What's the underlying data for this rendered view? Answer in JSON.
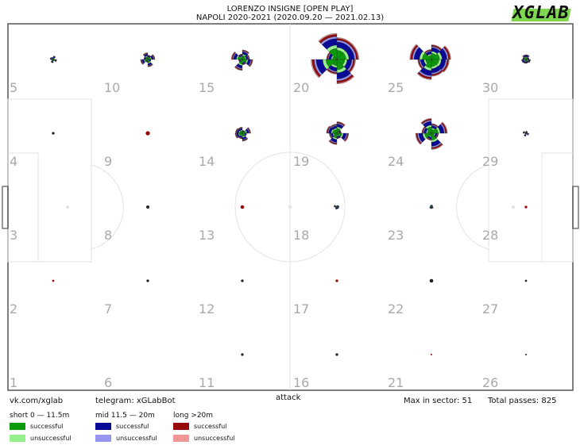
{
  "header": {
    "title_line1": "LORENZO INSIGNE [OPEN PLAY]",
    "title_line2": "NAPOLI 2020-2021 (2020.09.20 — 2021.02.13)",
    "logo_text": "XGLAB"
  },
  "footer": {
    "vk": "vk.com/xglab",
    "telegram": "telegram: xGLabBot",
    "attack": "attack",
    "max_in_sector": "Max in sector: 51",
    "total_passes": "Total passes: 825"
  },
  "legend": {
    "short_title": "short 0 — 11.5m",
    "mid_title": "mid 11.5 — 20m",
    "long_title": "long >20m",
    "successful": "successful",
    "unsuccessful": "unsuccessful",
    "colors": {
      "short_successful": "#0a9a0a",
      "short_unsuccessful": "#96f08c",
      "mid_successful": "#0a0a96",
      "mid_unsuccessful": "#9696f0",
      "long_successful": "#960a0a",
      "long_unsuccessful": "#f09696"
    }
  },
  "chart_data": {
    "type": "radial-sector-map",
    "max_in_sector": 51,
    "total_passes": 825,
    "sector_numbers": [
      "1",
      "2",
      "3",
      "4",
      "5",
      "6",
      "7",
      "8",
      "9",
      "10",
      "11",
      "12",
      "13",
      "14",
      "15",
      "16",
      "17",
      "18",
      "19",
      "20",
      "21",
      "22",
      "23",
      "24",
      "25",
      "26",
      "27",
      "28",
      "29",
      "30"
    ],
    "sectors": [
      {
        "sector": 5,
        "col": 0,
        "row": 0,
        "size": 0.14
      },
      {
        "sector": 4,
        "col": 0,
        "row": 1,
        "size": 0.05
      },
      {
        "sector": 3,
        "col": 0,
        "row": 2,
        "size": 0.0
      },
      {
        "sector": 2,
        "col": 0,
        "row": 3,
        "size": 0.04
      },
      {
        "sector": 1,
        "col": 0,
        "row": 4,
        "size": 0.0
      },
      {
        "sector": 10,
        "col": 1,
        "row": 0,
        "size": 0.28
      },
      {
        "sector": 9,
        "col": 1,
        "row": 1,
        "size": 0.08
      },
      {
        "sector": 8,
        "col": 1,
        "row": 2,
        "size": 0.06
      },
      {
        "sector": 7,
        "col": 1,
        "row": 3,
        "size": 0.05
      },
      {
        "sector": 6,
        "col": 1,
        "row": 4,
        "size": 0.0
      },
      {
        "sector": 15,
        "col": 2,
        "row": 0,
        "size": 0.42
      },
      {
        "sector": 14,
        "col": 2,
        "row": 1,
        "size": 0.32
      },
      {
        "sector": 13,
        "col": 2,
        "row": 2,
        "size": 0.07
      },
      {
        "sector": 12,
        "col": 2,
        "row": 3,
        "size": 0.05
      },
      {
        "sector": 11,
        "col": 2,
        "row": 4,
        "size": 0.05
      },
      {
        "sector": 20,
        "col": 3,
        "row": 0,
        "size": 1.0
      },
      {
        "sector": 19,
        "col": 3,
        "row": 1,
        "size": 0.45
      },
      {
        "sector": 18,
        "col": 3,
        "row": 2,
        "size": 0.12
      },
      {
        "sector": 17,
        "col": 3,
        "row": 3,
        "size": 0.05
      },
      {
        "sector": 16,
        "col": 3,
        "row": 4,
        "size": 0.05
      },
      {
        "sector": 25,
        "col": 4,
        "row": 0,
        "size": 0.85
      },
      {
        "sector": 24,
        "col": 4,
        "row": 1,
        "size": 0.62
      },
      {
        "sector": 23,
        "col": 4,
        "row": 2,
        "size": 0.1
      },
      {
        "sector": 22,
        "col": 4,
        "row": 3,
        "size": 0.07
      },
      {
        "sector": 21,
        "col": 4,
        "row": 4,
        "size": 0.03
      },
      {
        "sector": 30,
        "col": 5,
        "row": 0,
        "size": 0.2
      },
      {
        "sector": 29,
        "col": 5,
        "row": 1,
        "size": 0.12
      },
      {
        "sector": 28,
        "col": 5,
        "row": 2,
        "size": 0.05
      },
      {
        "sector": 27,
        "col": 5,
        "row": 3,
        "size": 0.04
      },
      {
        "sector": 26,
        "col": 5,
        "row": 4,
        "size": 0.03
      }
    ]
  }
}
